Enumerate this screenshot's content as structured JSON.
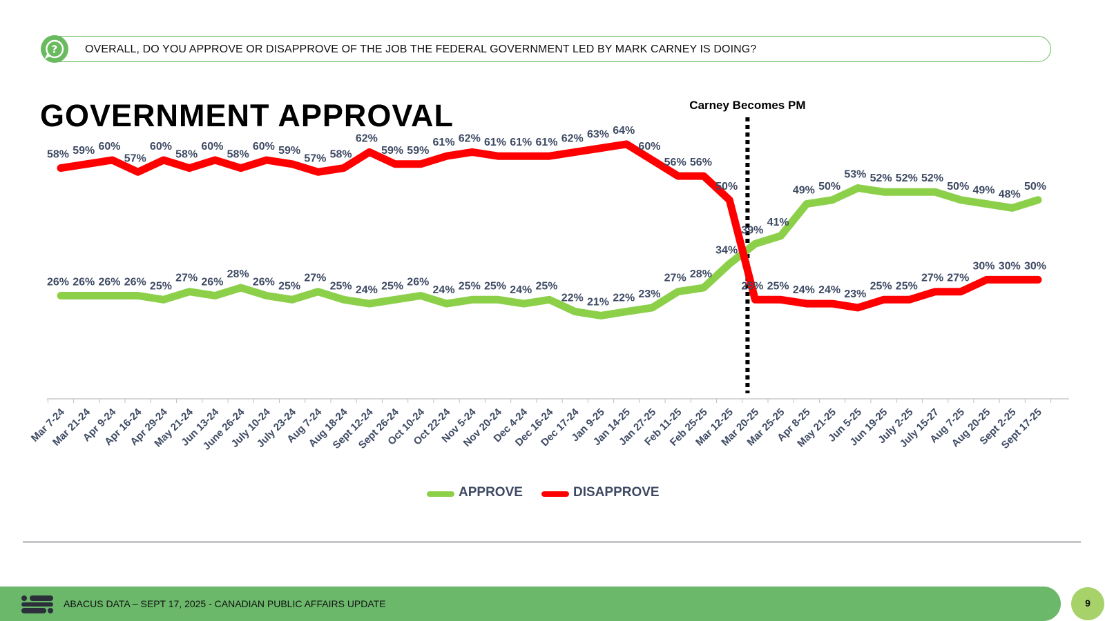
{
  "question": {
    "text": "OVERALL, DO YOU APPROVE OR DISAPPROVE OF THE JOB THE FEDERAL GOVERNMENT LED BY MARK CARNEY IS DOING?",
    "icon": "question-icon"
  },
  "title": "GOVERNMENT APPROVAL",
  "chart_data": {
    "type": "line",
    "title": "GOVERNMENT APPROVAL",
    "xlabel": "",
    "ylabel": "",
    "ylim": [
      0,
      100
    ],
    "grid": false,
    "legend_position": "bottom-center",
    "categories": [
      "Mar 7-24",
      "Mar 21-24",
      "Apr 9-24",
      "Apr 16-24",
      "Apr 29-24",
      "May 21-24",
      "Jun 13-24",
      "June 26-24",
      "July 10-24",
      "July 23-24",
      "Aug 7-24",
      "Aug 18-24",
      "Sept 12-24",
      "Sept 26-24",
      "Oct 10-24",
      "Oct 22-24",
      "Nov 5-24",
      "Nov 20-24",
      "Dec 4-24",
      "Dec 16-24",
      "Dec 17-24",
      "Jan 9-25",
      "Jan 14-25",
      "Jan 27-25",
      "Feb 11-25",
      "Feb 25-25",
      "Mar 12-25",
      "Mar 20-25",
      "Mar 25-25",
      "Apr 8-25",
      "May 21-25",
      "Jun 5-25",
      "Jun 19-25",
      "July 2-25",
      "July 15-27",
      "Aug 7-25",
      "Aug 20-25",
      "Sept 2-25",
      "Sept 17-25"
    ],
    "series": [
      {
        "name": "APPROVE",
        "color": "#8cd04a",
        "values": [
          26,
          26,
          26,
          26,
          25,
          27,
          26,
          28,
          26,
          25,
          27,
          25,
          24,
          25,
          26,
          24,
          25,
          25,
          24,
          25,
          22,
          21,
          22,
          23,
          27,
          28,
          34,
          39,
          41,
          49,
          50,
          53,
          52,
          52,
          52,
          50,
          49,
          48,
          50
        ]
      },
      {
        "name": "DISAPPROVE",
        "color": "#ff0000",
        "values": [
          58,
          59,
          60,
          57,
          60,
          58,
          60,
          58,
          60,
          59,
          57,
          58,
          62,
          59,
          59,
          61,
          62,
          61,
          61,
          61,
          62,
          63,
          64,
          60,
          56,
          56,
          50,
          25,
          25,
          24,
          24,
          23,
          25,
          25,
          27,
          27,
          30,
          30,
          30
        ]
      }
    ],
    "annotations": [
      {
        "text": "Carney Becomes PM",
        "category": "Mar 20-25",
        "style": "dotted-vertical-line"
      }
    ]
  },
  "legend": {
    "approve": "APPROVE",
    "disapprove": "DISAPPROVE"
  },
  "footer": {
    "text": "ABACUS DATA – SEPT 17, 2025 - CANADIAN PUBLIC AFFAIRS UPDATE",
    "page_number": "9",
    "logo": "abacus-logo"
  },
  "colors": {
    "accent_green": "#6bb86b",
    "badge_green": "#a7d26a",
    "label_navy": "#3e4a63"
  }
}
